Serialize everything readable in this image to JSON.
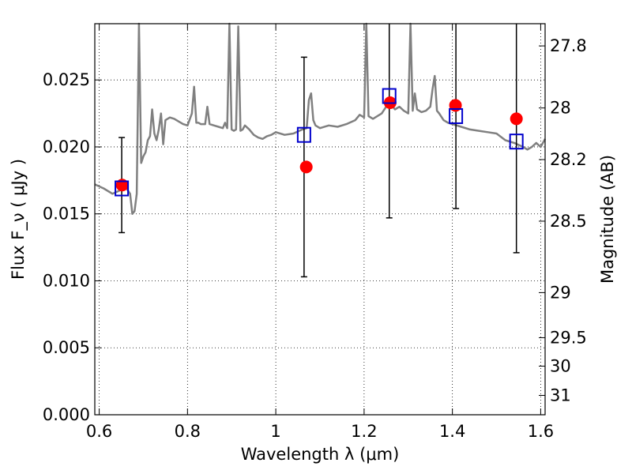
{
  "chart_data": {
    "type": "scatter",
    "xlabel": "Wavelength  λ (μm)",
    "ylabel_left": "Flux  F_ν  ( μJy )",
    "ylabel_right": "Magnitude (AB)",
    "xlim": [
      0.59,
      1.61
    ],
    "ylim": [
      0.0,
      0.0292
    ],
    "x_ticks": [
      {
        "value": 0.6,
        "label": "0.6"
      },
      {
        "value": 0.8,
        "label": "0.8"
      },
      {
        "value": 1.0,
        "label": "1"
      },
      {
        "value": 1.2,
        "label": "1.2"
      },
      {
        "value": 1.4,
        "label": "1.4"
      },
      {
        "value": 1.6,
        "label": "1.6"
      }
    ],
    "y_ticks": [
      {
        "value": 0.0,
        "label": "0.000"
      },
      {
        "value": 0.005,
        "label": "0.005"
      },
      {
        "value": 0.01,
        "label": "0.010"
      },
      {
        "value": 0.015,
        "label": "0.015"
      },
      {
        "value": 0.02,
        "label": "0.020"
      },
      {
        "value": 0.025,
        "label": "0.025"
      }
    ],
    "right_ticks": [
      {
        "mag": 27.8,
        "label": "27.8"
      },
      {
        "mag": 28.0,
        "label": "28"
      },
      {
        "mag": 28.2,
        "label": "28.2"
      },
      {
        "mag": 28.5,
        "label": "28.5"
      },
      {
        "mag": 29.0,
        "label": "29"
      },
      {
        "mag": 29.5,
        "label": "29.5"
      },
      {
        "mag": 30.0,
        "label": "30"
      },
      {
        "mag": 31.0,
        "label": "31"
      }
    ],
    "grid": true,
    "series": [
      {
        "style": "line",
        "color": "#808080",
        "x": [
          0.59,
          0.61,
          0.63,
          0.65,
          0.66,
          0.67,
          0.675,
          0.68,
          0.685,
          0.69,
          0.695,
          0.7,
          0.705,
          0.71,
          0.715,
          0.72,
          0.725,
          0.73,
          0.735,
          0.74,
          0.745,
          0.75,
          0.76,
          0.77,
          0.78,
          0.79,
          0.8,
          0.81,
          0.815,
          0.82,
          0.825,
          0.83,
          0.84,
          0.845,
          0.85,
          0.86,
          0.87,
          0.88,
          0.885,
          0.89,
          0.895,
          0.9,
          0.905,
          0.91,
          0.915,
          0.92,
          0.925,
          0.93,
          0.94,
          0.95,
          0.96,
          0.97,
          0.98,
          0.99,
          1.0,
          1.02,
          1.04,
          1.06,
          1.07,
          1.075,
          1.08,
          1.085,
          1.09,
          1.1,
          1.12,
          1.14,
          1.16,
          1.18,
          1.19,
          1.2,
          1.205,
          1.21,
          1.22,
          1.24,
          1.25,
          1.26,
          1.27,
          1.28,
          1.29,
          1.3,
          1.305,
          1.31,
          1.315,
          1.32,
          1.33,
          1.34,
          1.35,
          1.355,
          1.36,
          1.365,
          1.37,
          1.38,
          1.39,
          1.4,
          1.42,
          1.44,
          1.46,
          1.48,
          1.5,
          1.52,
          1.54,
          1.56,
          1.57,
          1.58,
          1.59,
          1.6,
          1.61
        ],
        "y": [
          0.0172,
          0.0169,
          0.0165,
          0.0168,
          0.017,
          0.0165,
          0.015,
          0.0152,
          0.0165,
          0.03,
          0.0188,
          0.0193,
          0.0196,
          0.0205,
          0.0208,
          0.0228,
          0.021,
          0.0205,
          0.0213,
          0.0225,
          0.0202,
          0.022,
          0.0222,
          0.0221,
          0.0219,
          0.0217,
          0.0216,
          0.0225,
          0.0245,
          0.0218,
          0.0218,
          0.0217,
          0.0217,
          0.023,
          0.0217,
          0.0216,
          0.0215,
          0.0214,
          0.0218,
          0.0214,
          0.03,
          0.0213,
          0.0212,
          0.0213,
          0.029,
          0.0212,
          0.0213,
          0.0216,
          0.0213,
          0.0209,
          0.0207,
          0.0206,
          0.0208,
          0.0209,
          0.0211,
          0.0209,
          0.021,
          0.0213,
          0.0214,
          0.0235,
          0.024,
          0.022,
          0.0216,
          0.0214,
          0.0216,
          0.0215,
          0.0217,
          0.022,
          0.0224,
          0.0222,
          0.03,
          0.0223,
          0.0221,
          0.0225,
          0.023,
          0.0232,
          0.0228,
          0.023,
          0.0227,
          0.0225,
          0.03,
          0.0227,
          0.024,
          0.0228,
          0.0226,
          0.0227,
          0.023,
          0.0243,
          0.0253,
          0.0227,
          0.0225,
          0.022,
          0.0218,
          0.0217,
          0.0215,
          0.0213,
          0.0212,
          0.0211,
          0.021,
          0.0205,
          0.0203,
          0.02,
          0.0198,
          0.02,
          0.0203,
          0.02,
          0.0206
        ]
      },
      {
        "style": "markers",
        "marker": "circle",
        "color": "#ff0000",
        "x": [
          0.652,
          1.069,
          1.259,
          1.407,
          1.545
        ],
        "y": [
          0.01715,
          0.0185,
          0.0233,
          0.0231,
          0.0221
        ]
      },
      {
        "style": "markers",
        "marker": "square-open",
        "color": "#0000cc",
        "x": [
          0.651,
          1.064,
          1.257,
          1.408,
          1.545
        ],
        "y": [
          0.0169,
          0.0209,
          0.0238,
          0.0223,
          0.0204
        ],
        "error_low": [
          0.0136,
          0.0103,
          0.0147,
          0.0154,
          0.0121
        ],
        "error_high": [
          0.0207,
          0.0267,
          0.0295,
          0.0295,
          0.0295
        ]
      }
    ]
  }
}
